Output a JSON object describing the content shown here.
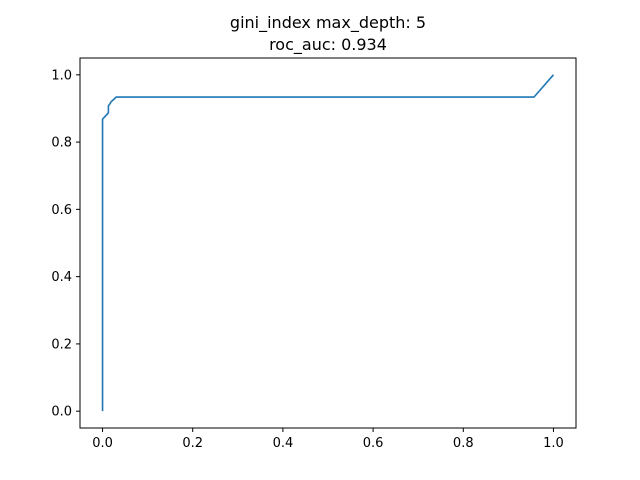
{
  "chart_data": {
    "type": "line",
    "title_lines": [
      "gini_index max_depth: 5",
      "roc_auc: 0.934"
    ],
    "xlabel": "",
    "ylabel": "",
    "xlim": [
      -0.05,
      1.05
    ],
    "ylim": [
      -0.05,
      1.05
    ],
    "x_ticks": [
      0.0,
      0.2,
      0.4,
      0.6,
      0.8,
      1.0
    ],
    "y_ticks": [
      0.0,
      0.2,
      0.4,
      0.6,
      0.8,
      1.0
    ],
    "x_tick_labels": [
      "0.0",
      "0.2",
      "0.4",
      "0.6",
      "0.8",
      "1.0"
    ],
    "y_tick_labels": [
      "0.0",
      "0.2",
      "0.4",
      "0.6",
      "0.8",
      "1.0"
    ],
    "grid": false,
    "series": [
      {
        "color": "#1f77b4",
        "x": [
          0.0,
          0.0,
          0.0,
          0.013,
          0.013,
          0.016,
          0.019,
          0.026,
          0.03,
          0.957,
          1.0
        ],
        "y": [
          0.0,
          0.865,
          0.868,
          0.887,
          0.908,
          0.913,
          0.92,
          0.928,
          0.934,
          0.934,
          1.0
        ]
      }
    ]
  }
}
